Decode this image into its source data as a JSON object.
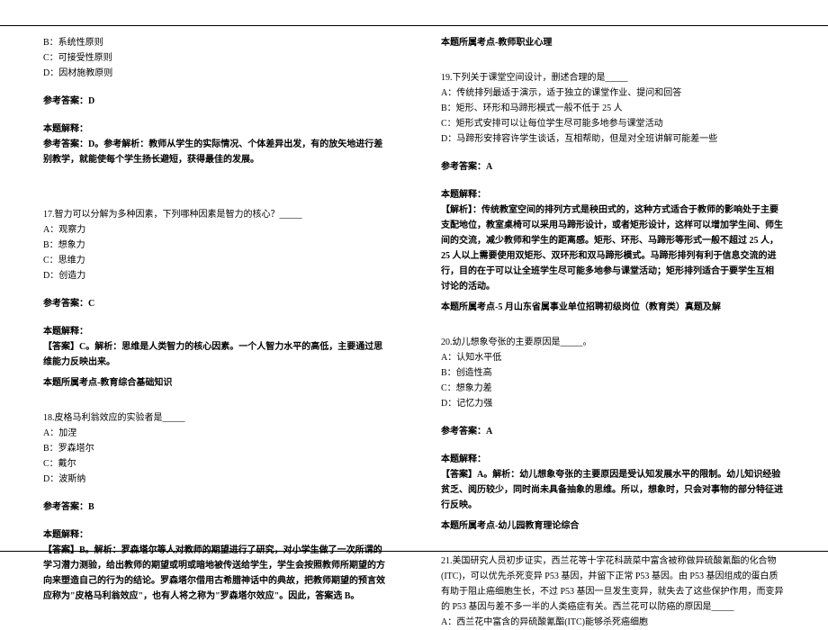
{
  "left": {
    "optB": "B：系统性原则",
    "optC": "C：可接受性原则",
    "optD": "D：因材施教原则",
    "ansLabel": "参考答案：D",
    "expTitle": "本题解释：",
    "exp": "参考答案：D。参考解析：教师从学生的实际情况、个体差异出发，有的放矢地进行差别教学，就能使每个学生扬长避短，获得最佳的发展。",
    "q17stem": "17.智力可以分解为多种因素，下列哪种因素是智力的核心？_____",
    "q17a": "A：观察力",
    "q17b": "B：想象力",
    "q17c": "C：思维力",
    "q17d": "D：创造力",
    "q17ans": "参考答案：C",
    "q17expTitle": "本题解释：",
    "q17exp": "【答案】C。解析：思维是人类智力的核心因素。一个人智力水平的高低，主要通过思维能力反映出来。",
    "q17topic": "本题所属考点-教育综合基础知识",
    "q18stem": "18.皮格马利翁效应的实验者是_____",
    "q18a": "A：加涅",
    "q18b": "B：罗森塔尔",
    "q18c": "C：戴尔",
    "q18d": "D：波斯纳",
    "q18ans": "参考答案：B",
    "q18expTitle": "本题解释：",
    "q18exp": "【答案】B。解析：罗森塔尔等人对教师的期望进行了研究，对小学生做了一次所谓的学习潜力测验，给出教师的期望或明或暗地被传送给学生，学生会按照教师所期望的方向来塑造自己的行为的结论。罗森塔尔借用古希腊神话中的典故，把教师期望的预言效应称为\"皮格马利翁效应\"，也有人将之称为\"罗森塔尔效应\"。因此，答案选 B。"
  },
  "right": {
    "topic18": "本题所属考点-教师职业心理",
    "q19stem": "19.下列关于课堂空间设计，删述合理的是_____",
    "q19a": "A：传统排列最适于演示，适于独立的课堂作业、提问和回答",
    "q19b": "B：矩形、环形和马蹄形模式一般不低于 25 人",
    "q19c": "C：矩形式安排可以让每位学生尽可能多地参与课堂活动",
    "q19d": "D：马蹄形安排容许学生谈话，互相帮助，但是对全班讲解可能差一些",
    "q19ans": "参考答案：A",
    "q19expTitle": "本题解释：",
    "q19exp": "【解析】：传统教室空间的排列方式是秧田式的，这种方式适合于教师的影响处于主要支配地位，教室桌椅可以采用马蹄形设计，或者矩形设计，这样可以增加学生间、师生间的交流，减少教师和学生的距离感。矩形、环形、马蹄形等形式一般不超过 25 人，25 人以上需要使用双矩形、双环形和双马蹄形模式。马蹄形排列有利于信息交流的进行，目的在于可以让全班学生尽可能多地参与课堂活动；矩形排列适合于要学生互相 讨论的活动。",
    "q19topic": "本题所属考点-5 月山东省属事业单位招聘初级岗位（教育类）真题及解",
    "q20stem": "20.幼儿想象夸张的主要原因是_____。",
    "q20a": "A：认知水平低",
    "q20b": "B：创造性高",
    "q20c": "C：想象力差",
    "q20d": "D：记忆力强",
    "q20ans": "参考答案：A",
    "q20expTitle": "本题解释：",
    "q20exp": "【答案】A。解析：幼儿想象夸张的主要原因是受认知发展水平的限制。幼儿知识经验贫乏、阅历较少，同时尚未具备抽象的思维。所以，想象时，只会对事物的部分特征进行反映。",
    "q20topic": "本题所属考点-幼儿园教育理论综合",
    "q21stem": "21.美国研究人员初步证实，西兰花等十字花科蔬菜中富含被称做异硫酸氰酯的化合物(ITC)，可以优先杀死变异 P53 基因，并留下正常 P53 基因。由 P53 基因组成的蛋白质有助于阻止癌细胞生长，不过 P53 基因一旦发生变异，就失去了这些保护作用，而变异的 P53 基因与差不多一半的人类癌症有关。西兰花可以防癌的原因是_____",
    "q21a": "A：西兰花中富含的异硫酸氰酯(ITC)能够杀死癌细胞"
  }
}
